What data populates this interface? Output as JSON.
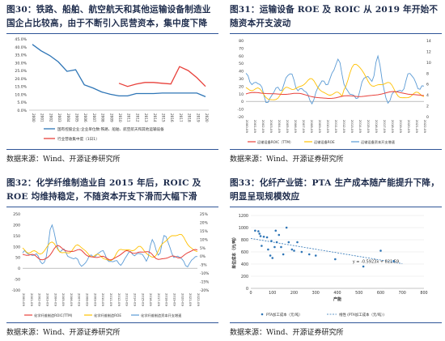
{
  "panels": [
    {
      "title": "图30：铁路、船舶、航空航天和其他运输设备制造业国企占比较高，由于不断引入民营资本，集中度下降",
      "source": "数据来源：Wind、开源证券研究所"
    },
    {
      "title": "图31：运输设备 ROE 及 ROIC 从 2019 年开始不随资本开支波动",
      "source": "数据来源：Wind、开源证券研究所"
    },
    {
      "title": "图32：化学纤维制造业自 2015 年后，ROIC 及 ROE 均维持稳定，不随资本开支下滑而大幅下滑",
      "source": "数据来源：Wind、开源证券研究所"
    },
    {
      "title": "图33：化纤产业链：PTA 生产成本随产能提升下降，明显呈现规模效应",
      "source": "数据来源：Wind、开源证券研究所"
    }
  ],
  "chart_data": [
    {
      "type": "line",
      "x": [
        "2000",
        "2001",
        "2002",
        "2003",
        "2004",
        "2005",
        "2006",
        "2007",
        "2008",
        "2009",
        "2010",
        "2011",
        "2012",
        "2013",
        "2014",
        "2015",
        "2016",
        "2017",
        "2018",
        "2019",
        "2020"
      ],
      "ylim": [
        0,
        45
      ],
      "yticks": [
        "0.0%",
        "5.0%",
        "10.0%",
        "15.0%",
        "20.0%",
        "25.0%",
        "30.0%",
        "35.0%",
        "40.0%",
        "45.0%"
      ],
      "series": [
        {
          "name": "国有控股企业:企业单位数:铁路、船舶、航空航天和其他运输设备",
          "color": "#2e75b6",
          "values": [
            41.5,
            37.5,
            34.5,
            30.5,
            24.5,
            25.5,
            16.0,
            14.0,
            11.5,
            10.0,
            9.0,
            9.0,
            10.5,
            10.5,
            10.5,
            10.8,
            10.8,
            10.8,
            10.8,
            10.8,
            8.5
          ]
        },
        {
          "name": "行业营收集中度（1日1）",
          "color": "#e8413b",
          "values": [
            null,
            null,
            null,
            null,
            null,
            null,
            null,
            null,
            null,
            null,
            17.0,
            15.0,
            16.5,
            17.5,
            17.5,
            17.0,
            16.5,
            27.5,
            25.0,
            20.5,
            15.0
          ]
        }
      ]
    },
    {
      "type": "line",
      "x": [
        "2000-09",
        "2001-09",
        "2002-09",
        "2003-09",
        "2004-09",
        "2005-09",
        "2006-09",
        "2007-09",
        "2008-09",
        "2009-09",
        "2010-09",
        "2011-09",
        "2012-09",
        "2013-09",
        "2014-09",
        "2015-09",
        "2016-09",
        "2017-09",
        "2018-09",
        "2019-09",
        "2020-09",
        "2021-09",
        "2022-09"
      ],
      "yleft_ticks": [
        "-20",
        "-10",
        "0",
        "10",
        "20",
        "30",
        "40",
        "50",
        "60",
        "70",
        "80"
      ],
      "yright_ticks": [
        "0",
        "2",
        "4",
        "6",
        "8",
        "10",
        "12",
        "14"
      ],
      "series": [
        {
          "name": "运输设备ROIC（TTM）",
          "color": "#e8413b",
          "axis": "left"
        },
        {
          "name": "运输设备ROE",
          "color": "#ffc000",
          "axis": "right"
        },
        {
          "name": "运输设备资本开支增速",
          "color": "#5b9bd5",
          "axis": "left"
        }
      ]
    },
    {
      "type": "line",
      "x": [
        "2000-09",
        "2001-09",
        "2002-09",
        "2003-09",
        "2004-09",
        "2005-09",
        "2006-09",
        "2007-09",
        "2008-09",
        "2009-09",
        "2010-09",
        "2011-09",
        "2012-09",
        "2013-09",
        "2014-09",
        "2015-09",
        "2016-09",
        "2017-09",
        "2018-09",
        "2019-09",
        "2020-09",
        "2021-09",
        "2022-09"
      ],
      "yleft_ticks": [
        "-100",
        "-50",
        "0",
        "50",
        "100",
        "150",
        "200",
        "250"
      ],
      "yright_ticks": [
        "-20%",
        "-15%",
        "-10%",
        "-5%",
        "0%",
        "5%",
        "10%",
        "15%",
        "20%",
        "25%"
      ],
      "series": [
        {
          "name": "化学纤维制造ROIC(TTM)",
          "color": "#e8413b",
          "axis": "right"
        },
        {
          "name": "化学纤维制造ROE",
          "color": "#ffc000",
          "axis": "right"
        },
        {
          "name": "化学纤维制造资本开支增速",
          "color": "#5b9bd5",
          "axis": "left"
        }
      ]
    },
    {
      "type": "scatter",
      "xlabel": "产能",
      "ylabel": "单位成本（元/吨）",
      "xlim": [
        0,
        800
      ],
      "ylim": [
        0,
        1200
      ],
      "xticks": [
        "0",
        "100",
        "200",
        "300",
        "400",
        "500",
        "600",
        "700",
        "800"
      ],
      "yticks": [
        "0",
        "200",
        "400",
        "600",
        "800",
        "1000",
        "1200"
      ],
      "points": [
        [
          20,
          950
        ],
        [
          35,
          940
        ],
        [
          40,
          900
        ],
        [
          45,
          860
        ],
        [
          50,
          700
        ],
        [
          60,
          850
        ],
        [
          75,
          840
        ],
        [
          80,
          640
        ],
        [
          90,
          540
        ],
        [
          95,
          780
        ],
        [
          100,
          500
        ],
        [
          110,
          680
        ],
        [
          115,
          950
        ],
        [
          120,
          760
        ],
        [
          130,
          880
        ],
        [
          140,
          680
        ],
        [
          150,
          560
        ],
        [
          165,
          1000
        ],
        [
          175,
          760
        ],
        [
          190,
          640
        ],
        [
          200,
          620
        ],
        [
          215,
          760
        ],
        [
          235,
          600
        ],
        [
          270,
          560
        ],
        [
          300,
          540
        ],
        [
          390,
          480
        ],
        [
          520,
          360
        ],
        [
          600,
          620
        ],
        [
          660,
          450
        ]
      ],
      "trendline": {
        "slope": -0.5923,
        "intercept": 821.59,
        "x_range": [
          0,
          700
        ]
      },
      "equation": "y = -0.5923x + 821.59",
      "legend": [
        "PTA加工成本（元/吨）",
        "线性 (PTA加工成本（元/吨）)"
      ]
    }
  ]
}
